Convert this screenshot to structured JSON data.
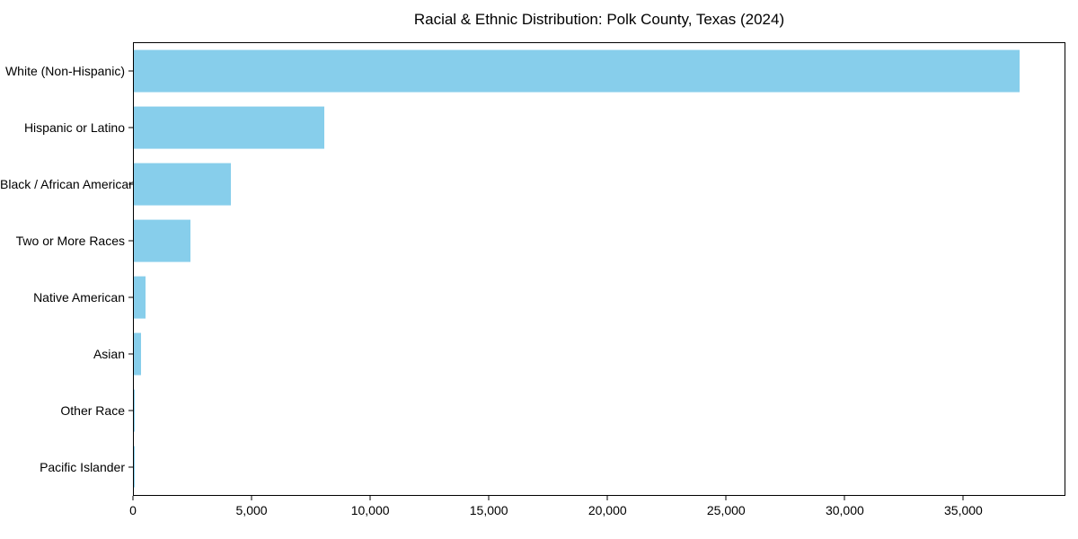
{
  "chart_data": {
    "type": "bar",
    "orientation": "horizontal",
    "title": "Racial & Ethnic Distribution: Polk County, Texas (2024)",
    "categories": [
      "White (Non-Hispanic)",
      "Hispanic or Latino",
      "Black / African American",
      "Two or More Races",
      "Native American",
      "Asian",
      "Other Race",
      "Pacific Islander"
    ],
    "values": [
      37400,
      8050,
      4100,
      2400,
      500,
      300,
      50,
      20
    ],
    "xlabel": "",
    "ylabel": "",
    "xlim": [
      0,
      39300
    ],
    "x_ticks": [
      0,
      5000,
      10000,
      15000,
      20000,
      25000,
      30000,
      35000
    ],
    "x_tick_labels": [
      "0",
      "5,000",
      "10,000",
      "15,000",
      "20,000",
      "25,000",
      "30,000",
      "35,000"
    ],
    "grid": false,
    "legend": null,
    "bar_color": "#87CEEB",
    "axis_color": "#000000",
    "background_color": "#FFFFFF"
  }
}
